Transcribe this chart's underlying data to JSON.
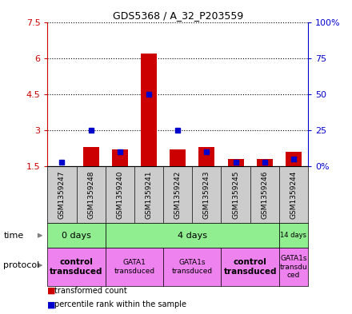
{
  "title": "GDS5368 / A_32_P203559",
  "samples": [
    "GSM1359247",
    "GSM1359248",
    "GSM1359240",
    "GSM1359241",
    "GSM1359242",
    "GSM1359243",
    "GSM1359245",
    "GSM1359246",
    "GSM1359244"
  ],
  "red_values": [
    1.5,
    2.3,
    2.2,
    6.2,
    2.2,
    2.3,
    1.8,
    1.8,
    2.1
  ],
  "blue_values_pct": [
    3,
    25,
    10,
    50,
    25,
    10,
    3,
    3,
    5
  ],
  "ylim_left": [
    1.5,
    7.5
  ],
  "ylim_right": [
    0,
    100
  ],
  "yticks_left": [
    1.5,
    3.0,
    4.5,
    6.0,
    7.5
  ],
  "yticks_right": [
    0,
    25,
    50,
    75,
    100
  ],
  "ytick_labels_left": [
    "1.5",
    "3",
    "4.5",
    "6",
    "7.5"
  ],
  "ytick_labels_right": [
    "0%",
    "25",
    "50",
    "75",
    "100%"
  ],
  "bar_width": 0.55,
  "red_color": "#cc0000",
  "blue_color": "#0000cc",
  "tick_color_left": "#cc0000",
  "tick_color_right": "#0000cc",
  "label_area_color": "#cccccc",
  "green_color": "#90ee90",
  "pink_color": "#ee82ee",
  "time_groups": [
    {
      "label": "0 days",
      "start": 0,
      "end": 2
    },
    {
      "label": "4 days",
      "start": 2,
      "end": 8
    },
    {
      "label": "14 days",
      "start": 8,
      "end": 9
    }
  ],
  "proto_groups": [
    {
      "label": "control\ntransduced",
      "start": 0,
      "end": 2,
      "bold": true
    },
    {
      "label": "GATA1\ntransduced",
      "start": 2,
      "end": 4,
      "bold": false
    },
    {
      "label": "GATA1s\ntransduced",
      "start": 4,
      "end": 6,
      "bold": false
    },
    {
      "label": "control\ntransduced",
      "start": 6,
      "end": 8,
      "bold": true
    },
    {
      "label": "GATA1s\ntransdu\nced",
      "start": 8,
      "end": 9,
      "bold": false
    }
  ]
}
